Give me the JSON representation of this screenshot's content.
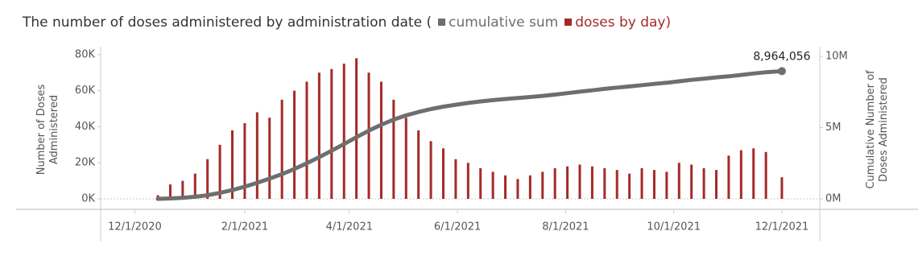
{
  "chart_data": {
    "type": "bar-line",
    "title": "The number of doses administered by administration date (",
    "y_label": "Number of Doses Administered",
    "y2_label": "Cumulative Number of Doses Administered",
    "x": [
      "12/14/2020",
      "12/21/2020",
      "12/28/2020",
      "1/4/2021",
      "1/11/2021",
      "1/18/2021",
      "1/25/2021",
      "2/1/2021",
      "2/8/2021",
      "2/15/2021",
      "2/22/2021",
      "3/1/2021",
      "3/8/2021",
      "3/15/2021",
      "3/22/2021",
      "3/29/2021",
      "4/5/2021",
      "4/12/2021",
      "4/19/2021",
      "4/26/2021",
      "5/3/2021",
      "5/10/2021",
      "5/17/2021",
      "5/24/2021",
      "5/31/2021",
      "6/7/2021",
      "6/14/2021",
      "6/21/2021",
      "6/28/2021",
      "7/5/2021",
      "7/12/2021",
      "7/19/2021",
      "7/26/2021",
      "8/2/2021",
      "8/9/2021",
      "8/16/2021",
      "8/23/2021",
      "8/30/2021",
      "9/6/2021",
      "9/13/2021",
      "9/20/2021",
      "9/27/2021",
      "10/4/2021",
      "10/11/2021",
      "10/18/2021",
      "10/25/2021",
      "11/1/2021",
      "11/8/2021",
      "11/15/2021",
      "11/22/2021",
      "12/1/2021"
    ],
    "series": [
      {
        "name": "cumulative sum",
        "color": "#6e6e6e",
        "kind": "line",
        "axis": "y2",
        "values": [
          5000,
          30000,
          80000,
          150000,
          260000,
          420000,
          620000,
          860000,
          1130000,
          1420000,
          1740000,
          2100000,
          2500000,
          2930000,
          3380000,
          3850000,
          4330000,
          4790000,
          5200000,
          5560000,
          5860000,
          6100000,
          6300000,
          6470000,
          6610000,
          6730000,
          6840000,
          6930000,
          7010000,
          7080000,
          7150000,
          7230000,
          7320000,
          7420000,
          7520000,
          7620000,
          7720000,
          7810000,
          7890000,
          7980000,
          8070000,
          8150000,
          8250000,
          8350000,
          8440000,
          8530000,
          8600000,
          8700000,
          8800000,
          8890000,
          8964056
        ],
        "value_labels": [
          null,
          null,
          null,
          null,
          null,
          null,
          null,
          null,
          null,
          null,
          null,
          null,
          null,
          null,
          null,
          null,
          null,
          null,
          null,
          null,
          null,
          null,
          null,
          null,
          null,
          null,
          null,
          null,
          null,
          null,
          null,
          null,
          null,
          null,
          null,
          null,
          null,
          null,
          null,
          null,
          null,
          null,
          null,
          null,
          null,
          null,
          null,
          null,
          null,
          null,
          "8,964,056"
        ]
      },
      {
        "name": "doses by day)",
        "color": "#a52a2a",
        "kind": "bar",
        "values": [
          2000,
          8000,
          10000,
          14000,
          22000,
          30000,
          38000,
          42000,
          48000,
          45000,
          55000,
          60000,
          65000,
          70000,
          72000,
          75000,
          78000,
          70000,
          65000,
          55000,
          45000,
          38000,
          32000,
          28000,
          22000,
          20000,
          17000,
          15000,
          13000,
          11000,
          13000,
          15000,
          17000,
          18000,
          19000,
          18000,
          17000,
          16000,
          14000,
          17000,
          16000,
          15000,
          20000,
          19000,
          17000,
          16000,
          24000,
          27000,
          28000,
          26000,
          12000
        ]
      }
    ],
    "xlim": [
      "11/14/2020",
      "12/21/2021"
    ],
    "xticks": [
      "12/1/2020",
      "2/1/2021",
      "4/1/2021",
      "6/1/2021",
      "8/1/2021",
      "10/1/2021",
      "12/1/2021"
    ],
    "ylim": [
      -5800,
      84400
    ],
    "yticks": [
      {
        "value": 0,
        "label": "0K"
      },
      {
        "value": 20000,
        "label": "20K"
      },
      {
        "value": 40000,
        "label": "40K"
      },
      {
        "value": 60000,
        "label": "60K"
      },
      {
        "value": 80000,
        "label": "80K"
      }
    ],
    "y2lim": [
      -730000,
      10680000
    ],
    "y2ticks": [
      {
        "value": 0,
        "label": "0M"
      },
      {
        "value": 5000000,
        "label": "5M"
      },
      {
        "value": 10000000,
        "label": "10M"
      }
    ],
    "grid": false
  }
}
